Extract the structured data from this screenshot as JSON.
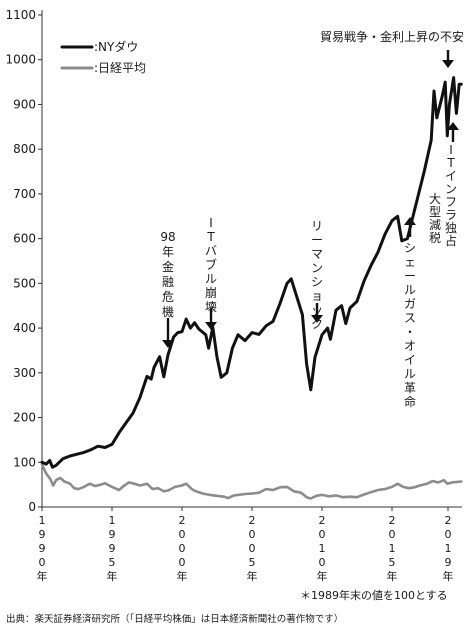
{
  "colors": {
    "dow": "#111111",
    "nikkei": "#8c8c8c",
    "text": "#1a1a1a"
  },
  "chart_data": {
    "type": "line",
    "ylim": [
      0,
      1100
    ],
    "yticks": [
      "0",
      "100",
      "200",
      "300",
      "400",
      "500",
      "600",
      "700",
      "800",
      "900",
      "1000",
      "1100"
    ],
    "xlim": [
      1990,
      2020
    ],
    "xticks": [
      {
        "x": 1990,
        "label": "1990年"
      },
      {
        "x": 1995,
        "label": "1995年"
      },
      {
        "x": 2000,
        "label": "2000年"
      },
      {
        "x": 2005,
        "label": "2005年"
      },
      {
        "x": 2010,
        "label": "2010年"
      },
      {
        "x": 2015,
        "label": "2015年"
      },
      {
        "x": 2019,
        "label": "2019年"
      }
    ],
    "legend": [
      ":NYダウ",
      ":日経平均"
    ],
    "series": [
      {
        "name": ":NYダウ",
        "points": [
          [
            1990.0,
            100
          ],
          [
            1990.3,
            96
          ],
          [
            1990.55,
            104
          ],
          [
            1990.75,
            89
          ],
          [
            1991.0,
            93
          ],
          [
            1991.5,
            108
          ],
          [
            1992.0,
            114
          ],
          [
            1992.5,
            118
          ],
          [
            1993.0,
            122
          ],
          [
            1993.5,
            128
          ],
          [
            1994.0,
            136
          ],
          [
            1994.5,
            133
          ],
          [
            1995.0,
            140
          ],
          [
            1995.5,
            166
          ],
          [
            1996.0,
            188
          ],
          [
            1996.5,
            210
          ],
          [
            1997.0,
            245
          ],
          [
            1997.5,
            292
          ],
          [
            1997.8,
            286
          ],
          [
            1998.0,
            312
          ],
          [
            1998.4,
            336
          ],
          [
            1998.7,
            291
          ],
          [
            1999.0,
            340
          ],
          [
            1999.4,
            380
          ],
          [
            1999.7,
            390
          ],
          [
            2000.0,
            392
          ],
          [
            2000.3,
            420
          ],
          [
            2000.6,
            400
          ],
          [
            2000.9,
            412
          ],
          [
            2001.2,
            398
          ],
          [
            2001.7,
            385
          ],
          [
            2001.9,
            355
          ],
          [
            2002.2,
            402
          ],
          [
            2002.5,
            335
          ],
          [
            2002.8,
            290
          ],
          [
            2003.2,
            300
          ],
          [
            2003.6,
            355
          ],
          [
            2004.0,
            385
          ],
          [
            2004.5,
            372
          ],
          [
            2005.0,
            390
          ],
          [
            2005.5,
            386
          ],
          [
            2006.0,
            405
          ],
          [
            2006.5,
            415
          ],
          [
            2007.0,
            455
          ],
          [
            2007.5,
            500
          ],
          [
            2007.8,
            510
          ],
          [
            2008.2,
            470
          ],
          [
            2008.6,
            430
          ],
          [
            2008.9,
            320
          ],
          [
            2009.2,
            262
          ],
          [
            2009.5,
            335
          ],
          [
            2010.0,
            385
          ],
          [
            2010.4,
            400
          ],
          [
            2010.6,
            375
          ],
          [
            2011.0,
            440
          ],
          [
            2011.4,
            450
          ],
          [
            2011.7,
            410
          ],
          [
            2012.0,
            445
          ],
          [
            2012.5,
            460
          ],
          [
            2013.0,
            505
          ],
          [
            2013.5,
            540
          ],
          [
            2014.0,
            570
          ],
          [
            2014.5,
            610
          ],
          [
            2015.0,
            640
          ],
          [
            2015.4,
            650
          ],
          [
            2015.7,
            595
          ],
          [
            2016.1,
            600
          ],
          [
            2016.5,
            650
          ],
          [
            2016.9,
            700
          ],
          [
            2017.3,
            750
          ],
          [
            2017.8,
            820
          ],
          [
            2018.0,
            930
          ],
          [
            2018.2,
            870
          ],
          [
            2018.6,
            920
          ],
          [
            2018.8,
            950
          ],
          [
            2018.95,
            830
          ],
          [
            2019.1,
            900
          ],
          [
            2019.4,
            960
          ],
          [
            2019.6,
            880
          ],
          [
            2019.8,
            945
          ],
          [
            2019.95,
            945
          ]
        ]
      },
      {
        "name": ":日経平均",
        "points": [
          [
            1990.0,
            95
          ],
          [
            1990.3,
            75
          ],
          [
            1990.6,
            62
          ],
          [
            1990.8,
            48
          ],
          [
            1991.0,
            60
          ],
          [
            1991.3,
            65
          ],
          [
            1991.6,
            57
          ],
          [
            1992.0,
            52
          ],
          [
            1992.3,
            42
          ],
          [
            1992.6,
            40
          ],
          [
            1993.0,
            45
          ],
          [
            1993.4,
            52
          ],
          [
            1993.8,
            47
          ],
          [
            1994.2,
            50
          ],
          [
            1994.5,
            53
          ],
          [
            1995.0,
            45
          ],
          [
            1995.5,
            38
          ],
          [
            1995.8,
            46
          ],
          [
            1996.2,
            55
          ],
          [
            1996.6,
            52
          ],
          [
            1997.0,
            48
          ],
          [
            1997.5,
            52
          ],
          [
            1997.9,
            40
          ],
          [
            1998.3,
            42
          ],
          [
            1998.7,
            35
          ],
          [
            1999.0,
            37
          ],
          [
            1999.5,
            45
          ],
          [
            2000.0,
            48
          ],
          [
            2000.3,
            52
          ],
          [
            2000.7,
            40
          ],
          [
            2001.0,
            35
          ],
          [
            2001.5,
            30
          ],
          [
            2002.0,
            27
          ],
          [
            2002.5,
            25
          ],
          [
            2003.0,
            23
          ],
          [
            2003.3,
            20
          ],
          [
            2003.7,
            26
          ],
          [
            2004.0,
            27
          ],
          [
            2004.5,
            29
          ],
          [
            2005.0,
            30
          ],
          [
            2005.5,
            32
          ],
          [
            2006.0,
            40
          ],
          [
            2006.5,
            38
          ],
          [
            2007.0,
            44
          ],
          [
            2007.5,
            45
          ],
          [
            2008.0,
            35
          ],
          [
            2008.5,
            32
          ],
          [
            2008.9,
            22
          ],
          [
            2009.2,
            19
          ],
          [
            2009.6,
            25
          ],
          [
            2010.0,
            27
          ],
          [
            2010.5,
            24
          ],
          [
            2011.0,
            26
          ],
          [
            2011.5,
            22
          ],
          [
            2012.0,
            23
          ],
          [
            2012.5,
            22
          ],
          [
            2013.0,
            28
          ],
          [
            2013.5,
            33
          ],
          [
            2014.0,
            38
          ],
          [
            2014.5,
            40
          ],
          [
            2015.0,
            45
          ],
          [
            2015.4,
            52
          ],
          [
            2015.8,
            45
          ],
          [
            2016.2,
            42
          ],
          [
            2016.6,
            44
          ],
          [
            2017.0,
            48
          ],
          [
            2017.5,
            52
          ],
          [
            2017.9,
            58
          ],
          [
            2018.3,
            55
          ],
          [
            2018.7,
            60
          ],
          [
            2018.95,
            52
          ],
          [
            2019.3,
            55
          ],
          [
            2019.95,
            57
          ]
        ]
      }
    ],
    "annotations": [
      {
        "text": "98年金融危機",
        "x": 1998.4,
        "y": 336
      },
      {
        "text": "ITバブル崩壊",
        "x": 2002.1,
        "y": 402
      },
      {
        "text": "リーマンショック",
        "x": 2007.8,
        "y": 510
      },
      {
        "text": "シェールガス・オイル革命",
        "x": 2015.7,
        "y": 595
      },
      {
        "text": "IT インフラ独占",
        "x": 2018.95,
        "y": 830
      },
      {
        "text": "大型減税",
        "x": 2018.95,
        "y": 830
      },
      {
        "text": "貿易戦争・金利上昇の不安",
        "x": 2018.8,
        "y": 955
      }
    ]
  },
  "footnote": "＊1989年末の値を100とする",
  "source": "出典：楽天証券経済研究所（「日経平均株価」は日本経済新聞社の著作物です）"
}
